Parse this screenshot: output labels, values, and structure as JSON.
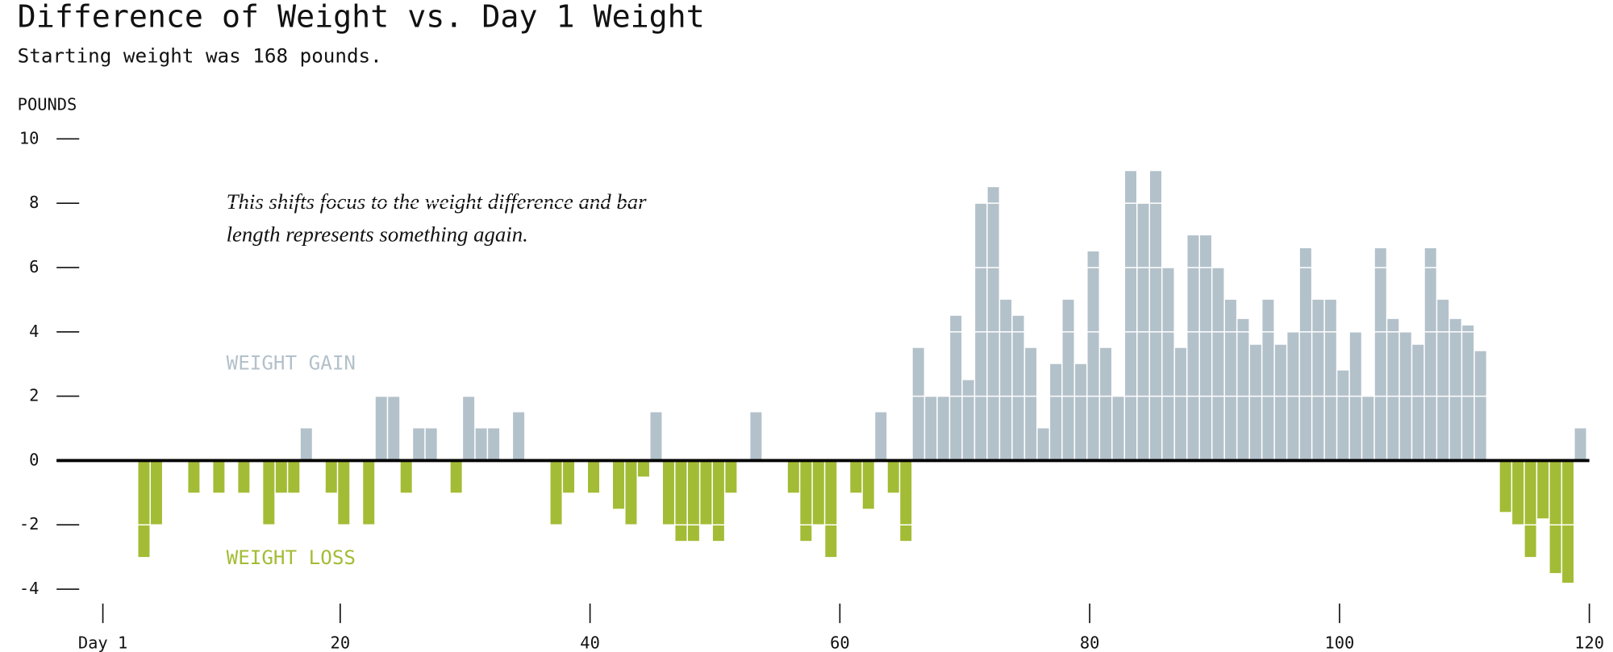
{
  "chart_data": {
    "type": "bar",
    "title": "Difference of Weight vs. Day 1 Weight",
    "subtitle": "Starting weight was 168 pounds.",
    "y_label": "POUNDS",
    "annotation_lines": [
      "This shifts focus to the weight difference and bar",
      "length represents something again."
    ],
    "gain_label": "WEIGHT GAIN",
    "loss_label": "WEIGHT LOSS",
    "gain_color": "#b3c1ca",
    "loss_color": "#a3bc35",
    "x": [
      1,
      2,
      3,
      4,
      5,
      6,
      7,
      8,
      9,
      10,
      11,
      12,
      13,
      14,
      15,
      16,
      17,
      18,
      19,
      20,
      21,
      22,
      23,
      24,
      25,
      26,
      27,
      28,
      29,
      30,
      31,
      32,
      33,
      34,
      35,
      36,
      37,
      38,
      39,
      40,
      41,
      42,
      43,
      44,
      45,
      46,
      47,
      48,
      49,
      50,
      51,
      52,
      53,
      54,
      55,
      56,
      57,
      58,
      59,
      60,
      61,
      62,
      63,
      64,
      65,
      66,
      67,
      68,
      69,
      70,
      71,
      72,
      73,
      74,
      75,
      76,
      77,
      78,
      79,
      80,
      81,
      82,
      83,
      84,
      85,
      86,
      87,
      88,
      89,
      90,
      91,
      92,
      93,
      94,
      95,
      96,
      97,
      98,
      99,
      100,
      101,
      102,
      103,
      104,
      105,
      106,
      107,
      108,
      109,
      110,
      111,
      112,
      113,
      114,
      115,
      116,
      117,
      118,
      119
    ],
    "values": [
      0,
      0,
      0,
      -3,
      -2,
      0,
      0,
      -1,
      0,
      -1,
      0,
      -1,
      0,
      -2,
      -1,
      -1,
      1,
      0,
      -1,
      -2,
      0,
      -2,
      2,
      2,
      -1,
      1,
      1,
      0,
      -1,
      2,
      1,
      1,
      0,
      1.5,
      0,
      0,
      -2,
      -1,
      0,
      -1,
      0,
      -1.5,
      -2,
      -0.5,
      1.5,
      -2,
      -2.5,
      -2.5,
      -2,
      -2.5,
      -1,
      0,
      1.5,
      0,
      0,
      -1,
      -2.5,
      -2,
      -3,
      0,
      -1,
      -1.5,
      1.5,
      -1,
      -2.5,
      3.5,
      2,
      2,
      4.5,
      2.5,
      8,
      8.5,
      5,
      4.5,
      3.5,
      1,
      3,
      5,
      3,
      6.5,
      3.5,
      2,
      9,
      8,
      9,
      6,
      3.5,
      7,
      7,
      6,
      5,
      4.4,
      3.6,
      5,
      3.6,
      4,
      6.6,
      5,
      5,
      2.8,
      4,
      2,
      6.6,
      4.4,
      4,
      3.6,
      6.6,
      5,
      4.4,
      4.2,
      3.4,
      0,
      -1.6,
      -2,
      -3,
      -1.8,
      -3.5,
      -3.8,
      1
    ],
    "xlim": [
      1,
      120
    ],
    "xticks": [
      {
        "value": 1,
        "label": "Day 1"
      },
      20,
      40,
      60,
      80,
      100,
      120
    ],
    "ylim": [
      -4,
      10
    ],
    "yticks": [
      -4,
      -2,
      0,
      2,
      4,
      6,
      8,
      10
    ],
    "grid": true
  }
}
